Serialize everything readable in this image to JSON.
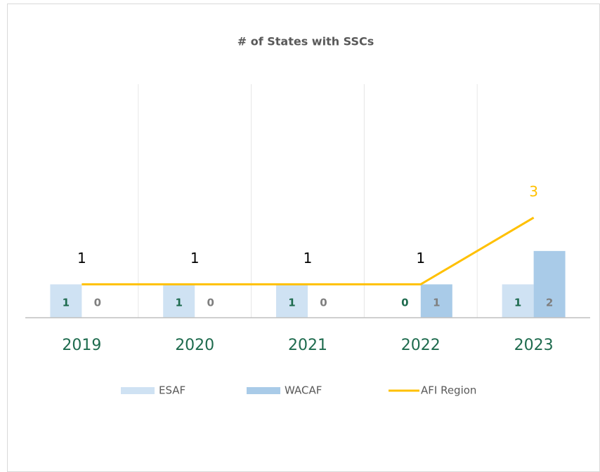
{
  "chart_data": {
    "type": "bar",
    "title": "# of States with SSCs",
    "categories": [
      "2019",
      "2020",
      "2021",
      "2022",
      "2023"
    ],
    "ylim": [
      0,
      7
    ],
    "series": [
      {
        "name": "ESAF",
        "type": "bar",
        "color": "#cfe2f3",
        "label_color": "#1e6b4e",
        "values": [
          1,
          1,
          1,
          0,
          1
        ]
      },
      {
        "name": "WACAF",
        "type": "bar",
        "color": "#a9cbe8",
        "label_color": "#7f7f7f",
        "values": [
          0,
          0,
          0,
          1,
          2
        ]
      },
      {
        "name": "AFI Region",
        "type": "line",
        "color": "#ffc000",
        "values": [
          1,
          1,
          1,
          1,
          3
        ],
        "value_label_colors": [
          "#000000",
          "#000000",
          "#000000",
          "#000000",
          "#ffc000"
        ]
      }
    ],
    "legend": "bottom"
  }
}
